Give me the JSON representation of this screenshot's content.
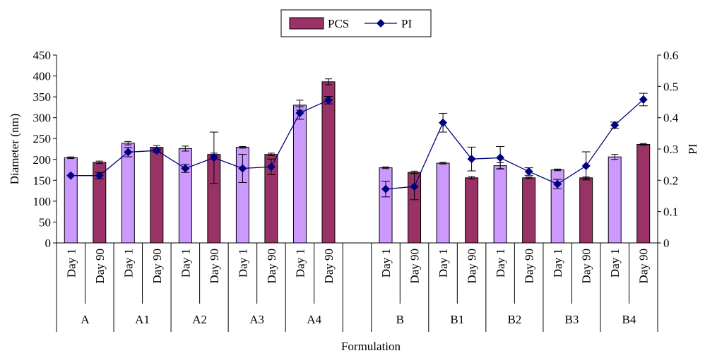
{
  "chart_data": {
    "type": "bar",
    "xlabel": "Formulation",
    "ylabel_left": "Diameter (nm)",
    "ylabel_right": "PI",
    "ylim_left": [
      0,
      450
    ],
    "ylim_right": [
      0,
      0.6
    ],
    "yticks_left": [
      "0",
      "50",
      "100",
      "150",
      "200",
      "250",
      "300",
      "350",
      "400",
      "450"
    ],
    "yticks_right": [
      "0",
      "0.1",
      "0.2",
      "0.3",
      "0.4",
      "0.5",
      "0.6"
    ],
    "legend": {
      "position": "top-center",
      "bar_label": "PCS",
      "line_label": "PI"
    },
    "colors": {
      "day1": "#cc99ff",
      "day90": "#993366",
      "pi": "#000080",
      "axis": "#000000"
    },
    "groups": [
      "A",
      "A1",
      "A2",
      "A3",
      "A4",
      "B",
      "B1",
      "B2",
      "B3",
      "B4"
    ],
    "categories": [
      {
        "group": "A",
        "label": "Day 1"
      },
      {
        "group": "A",
        "label": "Day 90"
      },
      {
        "group": "A1",
        "label": "Day 1"
      },
      {
        "group": "A1",
        "label": "Day 90"
      },
      {
        "group": "A2",
        "label": "Day 1"
      },
      {
        "group": "A2",
        "label": "Day 90"
      },
      {
        "group": "A3",
        "label": "Day 1"
      },
      {
        "group": "A3",
        "label": "Day 90"
      },
      {
        "group": "A4",
        "label": "Day 1"
      },
      {
        "group": "A4",
        "label": "Day 90"
      },
      {
        "group": "",
        "label": ""
      },
      {
        "group": "B",
        "label": "Day 1"
      },
      {
        "group": "B",
        "label": "Day 90"
      },
      {
        "group": "B1",
        "label": "Day 1"
      },
      {
        "group": "B1",
        "label": "Day 90"
      },
      {
        "group": "B2",
        "label": "Day 1"
      },
      {
        "group": "B2",
        "label": "Day 90"
      },
      {
        "group": "B3",
        "label": "Day 1"
      },
      {
        "group": "B3",
        "label": "Day 90"
      },
      {
        "group": "B4",
        "label": "Day 1"
      },
      {
        "group": "B4",
        "label": "Day 90"
      }
    ],
    "series": [
      {
        "name": "PCS",
        "kind": "bar",
        "values": [
          204,
          193,
          239,
          229,
          226,
          212,
          229,
          212,
          330,
          386,
          null,
          180,
          169,
          191,
          156,
          185,
          156,
          175,
          156,
          206,
          236
        ],
        "errors": [
          2,
          3,
          4,
          4,
          6,
          3,
          2,
          3,
          12,
          7,
          null,
          2,
          3,
          2,
          3,
          7,
          2,
          2,
          2,
          6,
          2
        ]
      },
      {
        "name": "PI",
        "kind": "line",
        "values": [
          0.215,
          0.215,
          0.29,
          0.295,
          0.238,
          0.272,
          0.238,
          0.243,
          0.415,
          0.456,
          null,
          0.172,
          0.18,
          0.384,
          0.268,
          0.272,
          0.228,
          0.188,
          0.246,
          0.376,
          0.458
        ],
        "errors": [
          0,
          0.01,
          0.015,
          0.005,
          0.013,
          0.082,
          0.045,
          0.025,
          0.02,
          0.012,
          null,
          0.025,
          0.042,
          0.03,
          0.038,
          0.036,
          0.012,
          0.015,
          0.045,
          0.01,
          0.02
        ]
      }
    ]
  }
}
